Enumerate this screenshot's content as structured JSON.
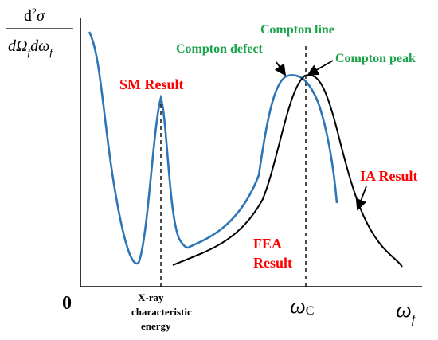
{
  "y_axis_label": {
    "numerator_prefix": "d",
    "numerator_sup": "2",
    "numerator_symbol": "σ",
    "denominator_parts": [
      "d",
      "Ω",
      "f",
      "d",
      "ω",
      "f"
    ]
  },
  "x_axis": {
    "origin_label": "0",
    "compton_tick_symbol": "ω",
    "compton_tick_sub": "C",
    "axis_symbol": "ω",
    "axis_sub": "f",
    "xray_label_lines": [
      "X-ray",
      "characteristic",
      "energy"
    ]
  },
  "annotations": {
    "sm_result": "SM Result",
    "fea_result_lines": [
      "FEA",
      "Result"
    ],
    "ia_result": "IA Result",
    "compton_line": "Compton line",
    "compton_defect": "Compton defect",
    "compton_peak": "Compton peak"
  },
  "colors": {
    "red_label": "#ff0000",
    "green_label": "#1aa34a",
    "blue_curve": "#2e75b6",
    "black_curve": "#000000"
  }
}
